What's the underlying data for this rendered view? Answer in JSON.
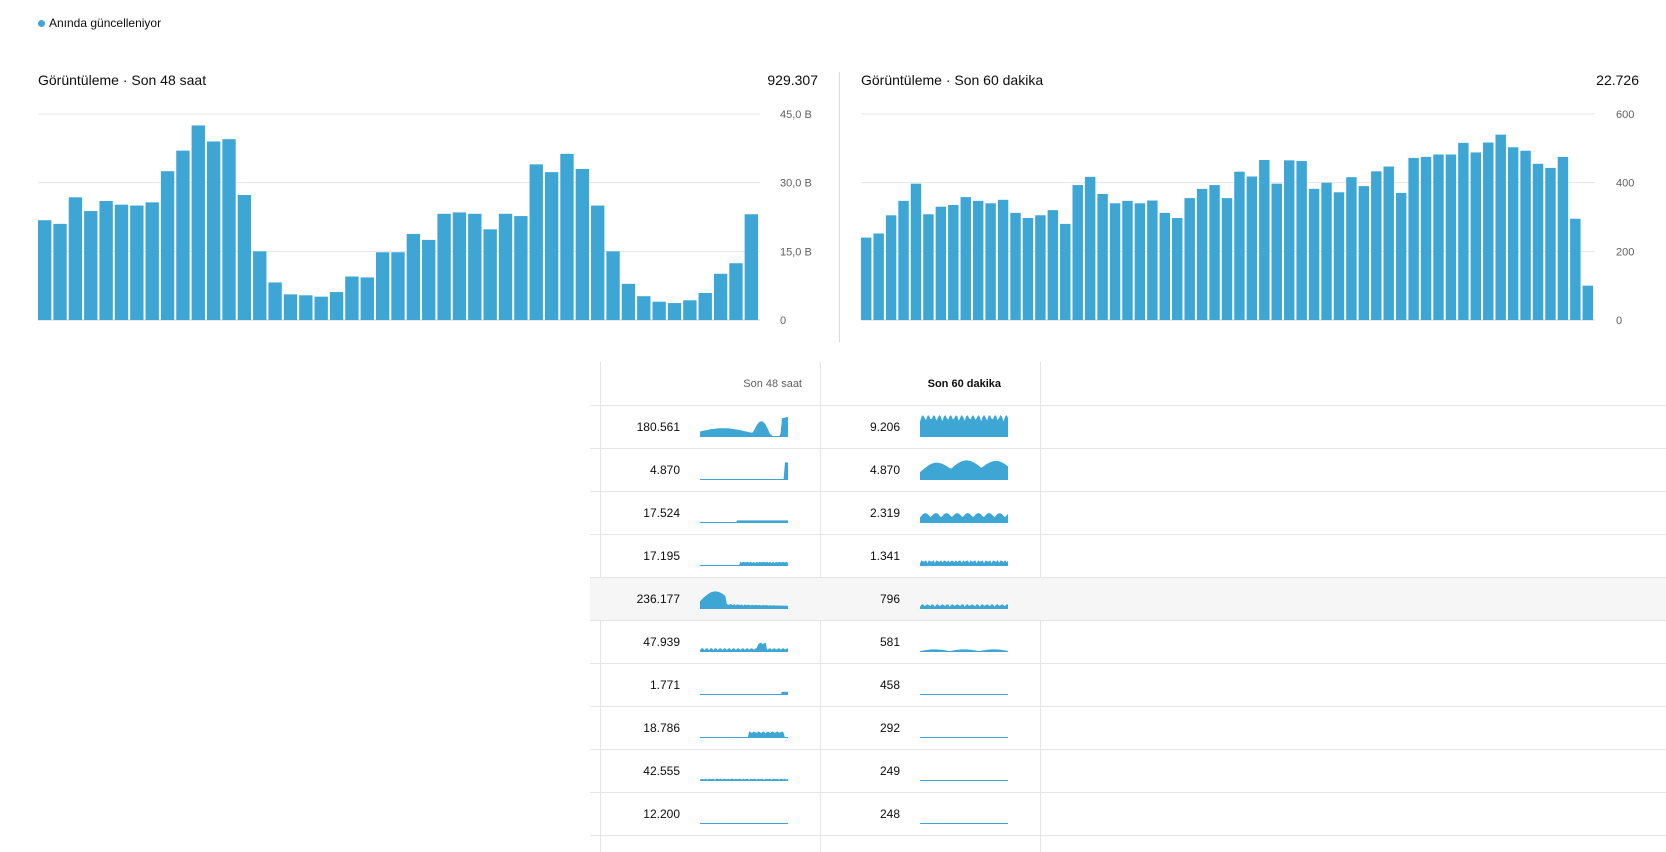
{
  "live_label": "Anında güncelleniyor",
  "colors": {
    "bar": "#3ea6d5",
    "grid": "#e6e6e6",
    "axis": "#606060"
  },
  "chart_data": [
    {
      "type": "bar",
      "title": "Görüntüleme · Son 48 saat",
      "total": "929.307",
      "ylim": [
        0,
        45000
      ],
      "yticks": [
        0,
        15000,
        30000,
        45000
      ],
      "ytick_labels": [
        "0",
        "15,0 B",
        "30,0 B",
        "45,0 B"
      ],
      "values": [
        21800,
        21000,
        26800,
        23800,
        26000,
        25200,
        25000,
        25700,
        32500,
        37000,
        42500,
        39000,
        39500,
        27300,
        15000,
        8200,
        5600,
        5400,
        5100,
        6100,
        9500,
        9300,
        14800,
        14800,
        18800,
        17500,
        23200,
        23500,
        23200,
        19800,
        23200,
        22700,
        34000,
        32300,
        36300,
        33000,
        25000,
        15000,
        7900,
        5200,
        4000,
        3700,
        4300,
        5900,
        10100,
        12400,
        23100
      ]
    },
    {
      "type": "bar",
      "title": "Görüntüleme · Son 60 dakika",
      "total": "22.726",
      "ylim": [
        0,
        600
      ],
      "yticks": [
        0,
        200,
        400,
        600
      ],
      "ytick_labels": [
        "0",
        "200",
        "400",
        "600"
      ],
      "values": [
        240,
        252,
        305,
        347,
        397,
        308,
        330,
        335,
        358,
        347,
        340,
        350,
        312,
        297,
        305,
        320,
        280,
        393,
        417,
        367,
        340,
        347,
        340,
        348,
        312,
        297,
        355,
        382,
        393,
        355,
        432,
        418,
        466,
        397,
        465,
        463,
        382,
        400,
        372,
        416,
        390,
        433,
        447,
        370,
        472,
        475,
        482,
        482,
        516,
        488,
        517,
        540,
        503,
        493,
        455,
        443,
        475,
        295,
        100
      ]
    }
  ],
  "table": {
    "headers": [
      "Son 48 saat",
      "Son 60 dakika"
    ],
    "rows": [
      {
        "v48": "180.561",
        "v60": "9.206"
      },
      {
        "v48": "4.870",
        "v60": "4.870"
      },
      {
        "v48": "17.524",
        "v60": "2.319"
      },
      {
        "v48": "17.195",
        "v60": "1.341"
      },
      {
        "v48": "236.177",
        "v60": "796"
      },
      {
        "v48": "47.939",
        "v60": "581"
      },
      {
        "v48": "1.771",
        "v60": "458"
      },
      {
        "v48": "18.786",
        "v60": "292"
      },
      {
        "v48": "42.555",
        "v60": "249"
      },
      {
        "v48": "12.200",
        "v60": "248"
      }
    ]
  }
}
